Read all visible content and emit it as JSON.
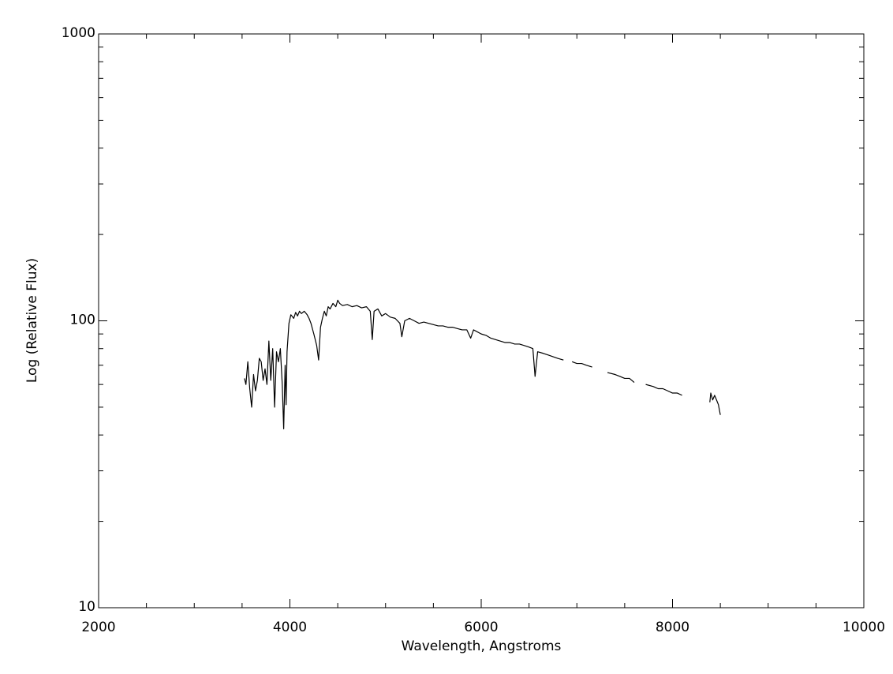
{
  "chart_data": {
    "type": "line",
    "x_label": "Wavelength, Angstroms",
    "y_label": "Log (Relative Flux)",
    "log_y": true,
    "color": "#000000",
    "xlim": [
      2000,
      10000
    ],
    "ylim": [
      10,
      1000
    ],
    "xticks": [
      2000,
      4000,
      6000,
      8000,
      10000
    ],
    "xminorticks": [
      2500,
      3000,
      3500,
      4500,
      5000,
      5500,
      6500,
      7000,
      7500,
      8500,
      9000,
      9500
    ],
    "yticks": [
      10,
      100,
      1000
    ],
    "yminorticks": [
      20,
      30,
      40,
      50,
      60,
      70,
      80,
      90,
      200,
      300,
      400,
      500,
      600,
      700,
      800,
      900
    ],
    "x": [
      3525,
      3540,
      3560,
      3580,
      3600,
      3620,
      3640,
      3660,
      3680,
      3700,
      3720,
      3740,
      3760,
      3780,
      3800,
      3820,
      3840,
      3860,
      3880,
      3900,
      3920,
      3935,
      3950,
      3960,
      3970,
      3990,
      4010,
      4040,
      4060,
      4080,
      4100,
      4120,
      4150,
      4180,
      4200,
      4220,
      4250,
      4280,
      4300,
      4320,
      4340,
      4360,
      4380,
      4400,
      4420,
      4450,
      4480,
      4500,
      4520,
      4550,
      4600,
      4650,
      4700,
      4750,
      4800,
      4840,
      4861,
      4880,
      4920,
      4960,
      5000,
      5050,
      5100,
      5150,
      5170,
      5200,
      5250,
      5300,
      5350,
      5400,
      5450,
      5500,
      5550,
      5600,
      5650,
      5700,
      5750,
      5800,
      5850,
      5890,
      5920,
      6000,
      6050,
      6100,
      6150,
      6200,
      6250,
      6300,
      6350,
      6400,
      6450,
      6500,
      6540,
      6563,
      6590,
      6650,
      6700,
      6750,
      6800,
      6860,
      6900,
      6950,
      7000,
      7050,
      7100,
      7160,
      7250,
      7320,
      7400,
      7450,
      7500,
      7550,
      7600,
      7650,
      7720,
      7800,
      7850,
      7900,
      7950,
      8000,
      8050,
      8100,
      8250,
      8390,
      8400,
      8420,
      8440,
      8460,
      8480,
      8500
    ],
    "values": [
      63,
      60,
      72,
      58,
      50,
      65,
      57,
      62,
      74,
      72,
      62,
      68,
      60,
      85,
      62,
      80,
      50,
      78,
      72,
      80,
      60,
      42,
      70,
      51,
      78,
      98,
      105,
      102,
      107,
      104,
      108,
      106,
      108,
      105,
      102,
      98,
      90,
      82,
      73,
      95,
      102,
      108,
      104,
      112,
      110,
      115,
      112,
      118,
      115,
      113,
      114,
      112,
      113,
      111,
      112,
      108,
      86,
      108,
      110,
      104,
      106,
      103,
      102,
      98,
      88,
      100,
      102,
      100,
      98,
      99,
      98,
      97,
      96,
      96,
      95,
      95,
      94,
      93,
      93,
      87,
      93,
      90,
      89,
      87,
      86,
      85,
      84,
      84,
      83,
      83,
      82,
      81,
      80,
      64,
      78,
      77,
      76,
      75,
      74,
      73,
      null,
      72,
      71,
      71,
      70,
      69,
      null,
      66,
      65,
      64,
      63,
      63,
      61,
      null,
      60,
      59,
      58,
      58,
      57,
      56,
      56,
      55,
      null,
      52,
      56,
      53,
      55,
      53,
      51,
      47
    ]
  }
}
